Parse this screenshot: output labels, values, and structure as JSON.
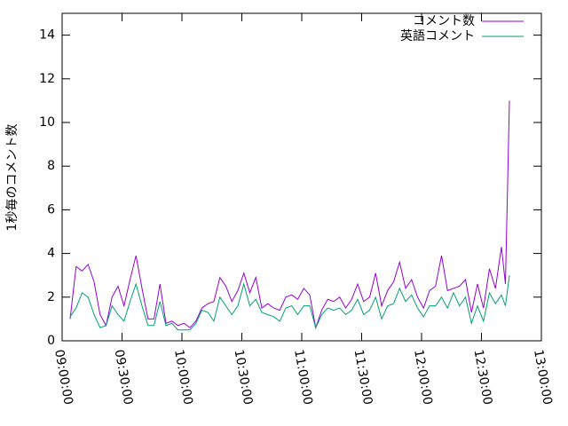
{
  "chart_data": {
    "type": "line",
    "y_label": "1秒毎のコメント数",
    "x": [
      "09:04:00",
      "09:07:00",
      "09:10:00",
      "09:13:00",
      "09:16:00",
      "09:19:00",
      "09:22:00",
      "09:25:00",
      "09:28:00",
      "09:31:00",
      "09:34:00",
      "09:37:00",
      "09:40:00",
      "09:43:00",
      "09:46:00",
      "09:49:00",
      "09:52:00",
      "09:55:00",
      "09:58:00",
      "10:01:00",
      "10:04:00",
      "10:07:00",
      "10:10:00",
      "10:13:00",
      "10:16:00",
      "10:19:00",
      "10:22:00",
      "10:25:00",
      "10:28:00",
      "10:31:00",
      "10:34:00",
      "10:37:00",
      "10:40:00",
      "10:43:00",
      "10:46:00",
      "10:49:00",
      "10:52:00",
      "10:55:00",
      "10:58:00",
      "11:01:00",
      "11:04:00",
      "11:07:00",
      "11:10:00",
      "11:13:00",
      "11:16:00",
      "11:19:00",
      "11:22:00",
      "11:25:00",
      "11:28:00",
      "11:31:00",
      "11:34:00",
      "11:37:00",
      "11:40:00",
      "11:43:00",
      "11:46:00",
      "11:49:00",
      "11:52:00",
      "11:55:00",
      "11:58:00",
      "12:01:00",
      "12:04:00",
      "12:07:00",
      "12:10:00",
      "12:13:00",
      "12:16:00",
      "12:19:00",
      "12:22:00",
      "12:25:00",
      "12:28:00",
      "12:31:00",
      "12:34:00",
      "12:37:00",
      "12:40:00",
      "12:42:00",
      "12:44:00"
    ],
    "series": [
      {
        "name": "コメント数",
        "color": "#9400d3",
        "values": [
          1.0,
          3.4,
          3.2,
          3.5,
          2.7,
          1.2,
          0.7,
          2.0,
          2.5,
          1.6,
          2.8,
          3.9,
          2.4,
          1.0,
          1.0,
          2.6,
          0.8,
          0.9,
          0.7,
          0.8,
          0.6,
          0.9,
          1.5,
          1.7,
          1.8,
          2.9,
          2.5,
          1.8,
          2.3,
          3.1,
          2.2,
          2.9,
          1.5,
          1.7,
          1.5,
          1.4,
          2.0,
          2.1,
          1.9,
          2.4,
          2.1,
          0.6,
          1.4,
          1.9,
          1.8,
          2.0,
          1.5,
          1.9,
          2.6,
          1.8,
          2.0,
          3.1,
          1.6,
          2.3,
          2.7,
          3.6,
          2.4,
          2.8,
          2.0,
          1.5,
          2.3,
          2.5,
          3.9,
          2.3,
          2.4,
          2.5,
          2.8,
          1.3,
          2.6,
          1.5,
          3.3,
          2.4,
          4.3,
          2.6,
          11.0
        ]
      },
      {
        "name": "英語コメント",
        "color": "#009e73",
        "values": [
          1.1,
          1.5,
          2.2,
          2.0,
          1.2,
          0.6,
          0.7,
          1.6,
          1.2,
          0.9,
          1.8,
          2.6,
          1.6,
          0.7,
          0.7,
          1.8,
          0.7,
          0.8,
          0.5,
          0.5,
          0.5,
          0.8,
          1.4,
          1.3,
          0.9,
          2.0,
          1.6,
          1.2,
          1.6,
          2.6,
          1.6,
          1.9,
          1.3,
          1.2,
          1.1,
          0.9,
          1.5,
          1.6,
          1.2,
          1.6,
          1.6,
          0.6,
          1.2,
          1.5,
          1.4,
          1.5,
          1.2,
          1.4,
          1.9,
          1.2,
          1.4,
          2.0,
          1.0,
          1.6,
          1.7,
          2.4,
          1.8,
          2.1,
          1.5,
          1.1,
          1.6,
          1.6,
          2.0,
          1.5,
          2.2,
          1.6,
          2.0,
          0.8,
          1.6,
          0.9,
          2.2,
          1.7,
          2.1,
          1.6,
          3.0
        ]
      }
    ],
    "xlim": [
      "09:00:00",
      "13:00:00"
    ],
    "xticks": [
      "09:00:00",
      "09:30:00",
      "10:00:00",
      "10:30:00",
      "11:00:00",
      "11:30:00",
      "12:00:00",
      "12:30:00",
      "13:00:00"
    ],
    "ylim": [
      0,
      15
    ],
    "yticks": [
      0,
      2,
      4,
      6,
      8,
      10,
      12,
      14
    ],
    "legend": "top-right"
  }
}
